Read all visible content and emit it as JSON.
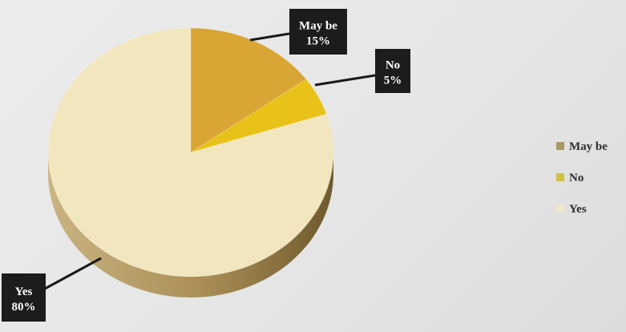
{
  "chart_data": {
    "type": "pie",
    "categories": [
      "May be",
      "No",
      "Yes"
    ],
    "values": [
      15,
      5,
      80
    ],
    "value_labels": [
      "15%",
      "5%",
      "80%"
    ],
    "colors": [
      "#d9a535",
      "#e8c219",
      "#f2e6bf"
    ],
    "legend": {
      "placement": "right",
      "entries": [
        "May be",
        "No",
        "Yes"
      ]
    },
    "three_d": true
  }
}
